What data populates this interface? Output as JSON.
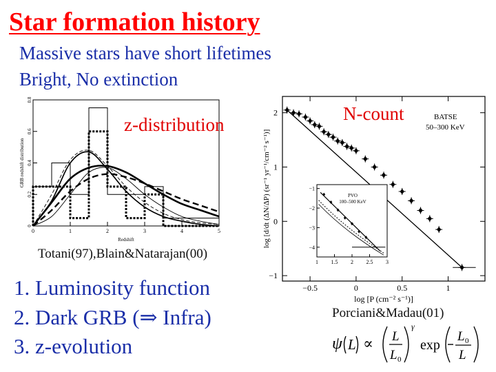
{
  "slide": {
    "title": "Star formation history",
    "subtitle_lines": [
      "Massive stars have short lifetimes",
      "Bright, No extinction"
    ],
    "list_items": [
      "1. Luminosity function",
      "2. Dark GRB (⇒ Infra)",
      "3. z-evolution"
    ],
    "left_caption": "Totani(97),Blain&Natarajan(00)",
    "right_caption": "Porciani&Madau(01)",
    "left_annotation": "z-distribution",
    "right_annotation": "N-count"
  },
  "colors": {
    "title": "#ff0000",
    "body_text": "#1a2ea8",
    "annotation": "#e00000"
  },
  "chart_data": [
    {
      "type": "line",
      "xlabel": "Redshift",
      "ylabel": "GRB redshift distribution",
      "xlim": [
        0,
        5
      ],
      "ylim": [
        0,
        0.8
      ],
      "x_ticks": [
        "0",
        "1",
        "2",
        "3",
        "4",
        "5"
      ],
      "y_ticks": [
        "0",
        "0.2",
        "0.4",
        "0.6",
        "0.8"
      ],
      "histograms": [
        {
          "style": "thin-solid",
          "edges": [
            0,
            0.5,
            1,
            1.5,
            2,
            3,
            3.5,
            5
          ],
          "values": [
            0.25,
            0.4,
            0.2,
            0.75,
            0.2,
            0.25,
            0.05
          ]
        },
        {
          "style": "thick-dotted",
          "edges": [
            0,
            1,
            1.5,
            2,
            2.5,
            3,
            3.5,
            5
          ],
          "values": [
            0.25,
            0.05,
            0.6,
            0.25,
            0.05,
            0.2,
            0
          ]
        }
      ],
      "curves": [
        {
          "style": "thick-solid",
          "x": [
            0,
            0.5,
            1,
            1.5,
            2,
            2.5,
            3,
            3.5,
            4,
            4.5,
            5
          ],
          "y": [
            0,
            0.15,
            0.3,
            0.37,
            0.38,
            0.34,
            0.27,
            0.2,
            0.14,
            0.1,
            0.06
          ]
        },
        {
          "style": "thick-dashed",
          "x": [
            0,
            0.5,
            1,
            1.5,
            2,
            2.5,
            3,
            3.5,
            4,
            4.5,
            5
          ],
          "y": [
            0,
            0.1,
            0.22,
            0.3,
            0.33,
            0.31,
            0.27,
            0.22,
            0.17,
            0.13,
            0.09
          ]
        },
        {
          "style": "thin-solid",
          "x": [
            0,
            0.5,
            1,
            1.5,
            2,
            2.5,
            3,
            3.5,
            4,
            4.5,
            5
          ],
          "y": [
            0,
            0.06,
            0.2,
            0.34,
            0.37,
            0.3,
            0.2,
            0.12,
            0.06,
            0.03,
            0.01
          ]
        },
        {
          "style": "thin-dashed",
          "x": [
            0,
            0.5,
            1,
            1.5,
            2,
            2.5,
            3,
            3.5,
            4,
            4.5,
            5
          ],
          "y": [
            0,
            0.2,
            0.42,
            0.48,
            0.38,
            0.25,
            0.15,
            0.08,
            0.04,
            0.02,
            0.01
          ]
        },
        {
          "style": "medium-solid",
          "x": [
            0,
            0.5,
            1,
            1.5,
            2,
            2.5,
            3,
            3.5,
            4,
            4.5,
            5
          ],
          "y": [
            0,
            0.16,
            0.4,
            0.47,
            0.36,
            0.22,
            0.12,
            0.06,
            0.03,
            0.01,
            0.0
          ]
        }
      ]
    },
    {
      "type": "scatter",
      "xlabel": "log [P (cm⁻² s⁻¹)]",
      "ylabel": "log [d/dt (ΔN/ΔP) (sr⁻¹ yr⁻¹/cm⁻² s⁻¹)]",
      "legend": [
        "BATSE",
        "50–300 KeV"
      ],
      "xlim": [
        -0.8,
        1.4
      ],
      "ylim": [
        -1.1,
        2.3
      ],
      "x_ticks": [
        "−0.5",
        "0",
        "0.5",
        "1"
      ],
      "y_ticks": [
        "−1",
        "0",
        "1",
        "2"
      ],
      "points": {
        "x": [
          -0.75,
          -0.68,
          -0.62,
          -0.55,
          -0.5,
          -0.45,
          -0.4,
          -0.35,
          -0.3,
          -0.25,
          -0.2,
          -0.15,
          -0.1,
          -0.05,
          0.0,
          0.1,
          0.2,
          0.3,
          0.4,
          0.5,
          0.6,
          0.7,
          0.8,
          0.9,
          1.15
        ],
        "y": [
          2.05,
          2.0,
          1.98,
          1.92,
          1.85,
          1.78,
          1.75,
          1.65,
          1.6,
          1.55,
          1.48,
          1.45,
          1.38,
          1.35,
          1.3,
          1.15,
          1.0,
          0.85,
          0.68,
          0.55,
          0.38,
          0.2,
          0.05,
          -0.15,
          -0.85
        ]
      },
      "fit_line": {
        "x": [
          -0.75,
          1.15
        ],
        "y": [
          2.05,
          -0.85
        ]
      },
      "inset": {
        "legend": [
          "PVO",
          "100–500 KeV"
        ],
        "xlim": [
          1,
          3
        ],
        "ylim": [
          -4.5,
          -0.8
        ],
        "x_ticks": [
          "1",
          "1.5",
          "2",
          "2.5",
          "3"
        ],
        "y_ticks": [
          "−1",
          "−2",
          "−3",
          "−4"
        ]
      }
    }
  ]
}
